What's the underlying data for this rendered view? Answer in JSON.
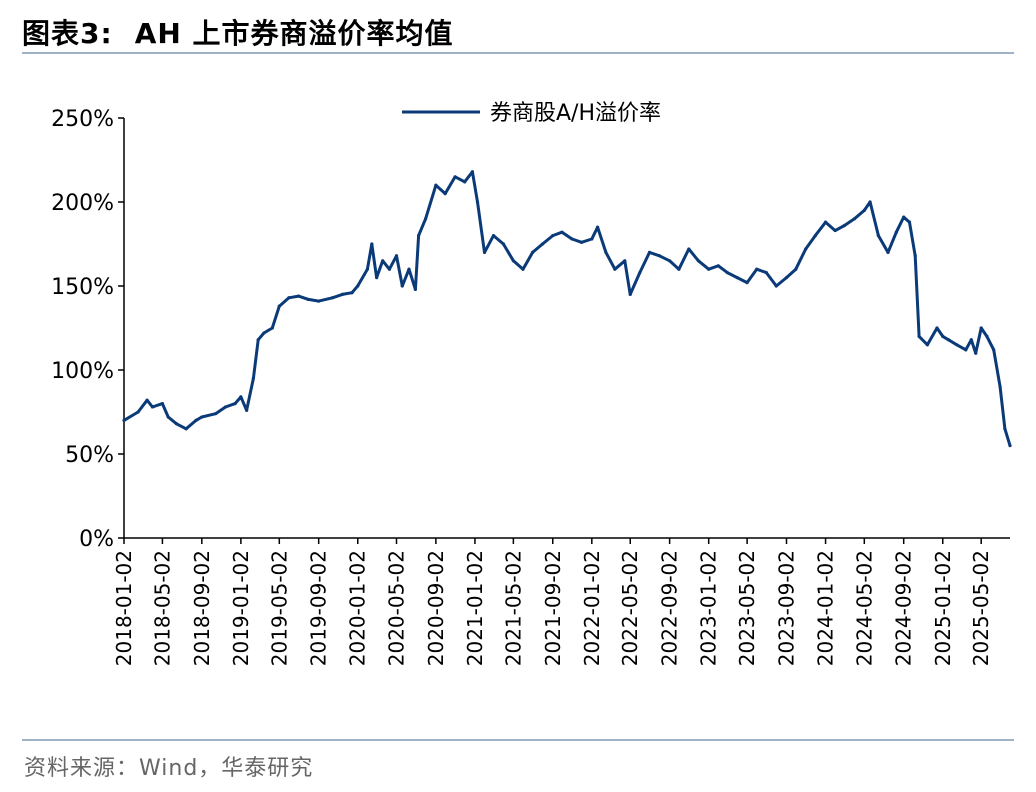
{
  "header": {
    "figure_number": "图表3:",
    "title": "AH 上市券商溢价率均值"
  },
  "footer": {
    "source": "资料来源：Wind，华泰研究"
  },
  "colors": {
    "series": "#0b3a78",
    "rule": "#9fb2c8",
    "axis": "#000000"
  },
  "chart_data": {
    "type": "line",
    "title": "AH 上市券商溢价率均值",
    "xlabel": "",
    "ylabel": "",
    "ylim": [
      0,
      250
    ],
    "y_ticks": [
      0,
      50,
      100,
      150,
      200,
      250
    ],
    "y_tick_labels": [
      "0%",
      "50%",
      "100%",
      "150%",
      "200%",
      "250%"
    ],
    "x_tick_labels": [
      "2018-01-02",
      "2018-05-02",
      "2018-09-02",
      "2019-01-02",
      "2019-05-02",
      "2019-09-02",
      "2020-01-02",
      "2020-05-02",
      "2020-09-02",
      "2021-01-02",
      "2021-05-02",
      "2021-09-02",
      "2022-01-02",
      "2022-05-02",
      "2022-09-02",
      "2023-01-02",
      "2023-05-02",
      "2023-09-02",
      "2024-01-02",
      "2024-05-02",
      "2024-09-02",
      "2025-01-02",
      "2025-05-02"
    ],
    "legend": {
      "position": "top-center",
      "entries": [
        "券商股A/H溢价率"
      ]
    },
    "grid": false,
    "series": [
      {
        "name": "券商股A/H溢价率",
        "x": [
          "2018-01-02",
          "2018-02-15",
          "2018-03-15",
          "2018-04-01",
          "2018-05-02",
          "2018-05-20",
          "2018-06-15",
          "2018-07-15",
          "2018-08-15",
          "2018-09-02",
          "2018-10-15",
          "2018-11-15",
          "2018-12-15",
          "2019-01-02",
          "2019-01-20",
          "2019-02-10",
          "2019-02-25",
          "2019-03-15",
          "2019-04-10",
          "2019-05-02",
          "2019-06-01",
          "2019-07-01",
          "2019-08-01",
          "2019-09-02",
          "2019-10-15",
          "2019-11-15",
          "2019-12-15",
          "2020-01-02",
          "2020-02-01",
          "2020-02-15",
          "2020-03-01",
          "2020-03-20",
          "2020-04-10",
          "2020-05-02",
          "2020-05-20",
          "2020-06-10",
          "2020-06-30",
          "2020-07-10",
          "2020-08-01",
          "2020-09-02",
          "2020-10-01",
          "2020-11-01",
          "2020-12-01",
          "2020-12-25",
          "2021-01-10",
          "2021-02-01",
          "2021-03-01",
          "2021-04-01",
          "2021-05-02",
          "2021-06-01",
          "2021-07-01",
          "2021-08-01",
          "2021-09-02",
          "2021-10-01",
          "2021-11-01",
          "2021-12-01",
          "2022-01-02",
          "2022-01-20",
          "2022-02-15",
          "2022-03-15",
          "2022-04-15",
          "2022-05-02",
          "2022-06-01",
          "2022-07-01",
          "2022-08-01",
          "2022-09-02",
          "2022-10-01",
          "2022-11-01",
          "2022-12-01",
          "2023-01-02",
          "2023-02-01",
          "2023-03-01",
          "2023-04-01",
          "2023-05-02",
          "2023-06-01",
          "2023-07-01",
          "2023-08-01",
          "2023-09-02",
          "2023-10-01",
          "2023-11-01",
          "2023-12-01",
          "2024-01-02",
          "2024-02-01",
          "2024-03-01",
          "2024-04-01",
          "2024-05-02",
          "2024-05-20",
          "2024-06-15",
          "2024-07-15",
          "2024-08-10",
          "2024-09-02",
          "2024-09-20",
          "2024-10-08",
          "2024-10-20",
          "2024-11-15",
          "2024-12-15",
          "2025-01-02",
          "2025-01-20",
          "2025-02-15",
          "2025-03-15",
          "2025-04-01",
          "2025-04-15",
          "2025-05-02",
          "2025-05-20",
          "2025-06-10",
          "2025-06-30",
          "2025-07-15",
          "2025-07-31"
        ],
        "values": [
          70,
          75,
          82,
          78,
          80,
          72,
          68,
          65,
          70,
          72,
          74,
          78,
          80,
          84,
          76,
          95,
          118,
          122,
          125,
          138,
          143,
          144,
          142,
          141,
          143,
          145,
          146,
          150,
          160,
          175,
          155,
          165,
          160,
          168,
          150,
          160,
          148,
          180,
          190,
          210,
          205,
          215,
          212,
          218,
          200,
          170,
          180,
          175,
          165,
          160,
          170,
          175,
          180,
          182,
          178,
          176,
          178,
          185,
          170,
          160,
          165,
          145,
          158,
          170,
          168,
          165,
          160,
          172,
          165,
          160,
          162,
          158,
          155,
          152,
          160,
          158,
          150,
          155,
          160,
          172,
          180,
          188,
          183,
          186,
          190,
          195,
          200,
          180,
          170,
          182,
          191,
          188,
          168,
          120,
          115,
          125,
          120,
          118,
          115,
          112,
          118,
          110,
          125,
          120,
          112,
          90,
          65,
          55
        ]
      }
    ]
  }
}
